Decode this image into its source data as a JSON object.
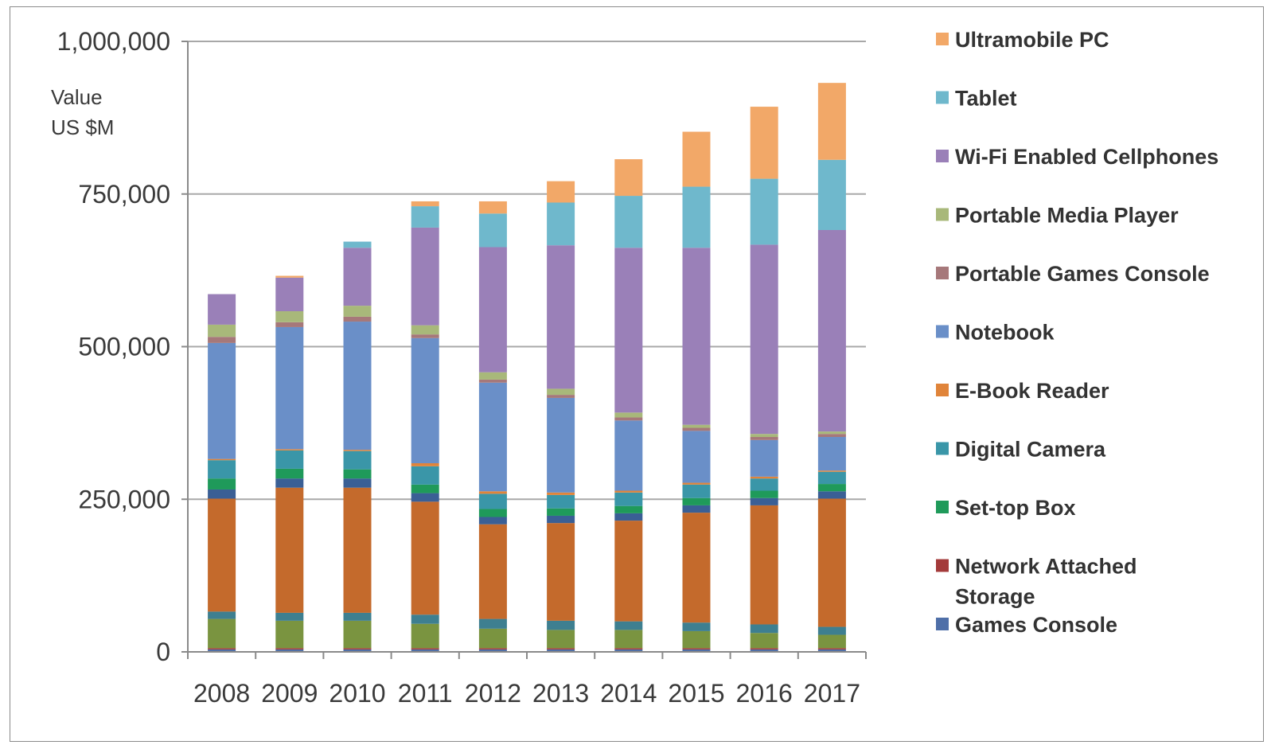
{
  "chart_data": {
    "type": "bar",
    "stacked": true,
    "unit_label": [
      "Value",
      "US $M"
    ],
    "categories": [
      "2008",
      "2009",
      "2010",
      "2011",
      "2012",
      "2013",
      "2014",
      "2015",
      "2016",
      "2017"
    ],
    "ylim": [
      0,
      1000000
    ],
    "yticks": [
      0,
      250000,
      500000,
      750000,
      1000000
    ],
    "ytick_labels": [
      "0",
      "250,000",
      "500,000",
      "750,000",
      "1,000,000"
    ],
    "grid": true,
    "legend_position": "right",
    "series": [
      {
        "name": "Games Console",
        "color": "#4f6fa8",
        "values": [
          4000,
          4000,
          4000,
          4000,
          4000,
          4000,
          4000,
          4000,
          4000,
          4000
        ]
      },
      {
        "name": "Network Attached Storage",
        "color": "#a33a3a",
        "values": [
          2000,
          2000,
          2000,
          2000,
          2000,
          2000,
          2000,
          2000,
          2000,
          2000
        ]
      },
      {
        "name": "",
        "color": "#7a9440",
        "values": [
          48000,
          45000,
          45000,
          40000,
          32000,
          30000,
          30000,
          28000,
          25000,
          22000
        ]
      },
      {
        "name": "",
        "color": "#3e7f90",
        "values": [
          12000,
          13000,
          13000,
          15000,
          16000,
          15000,
          14000,
          14000,
          14000,
          13000
        ]
      },
      {
        "name": "E-Book Reader",
        "color": "#c46a2c",
        "values": [
          185000,
          205000,
          205000,
          185000,
          155000,
          160000,
          165000,
          180000,
          195000,
          210000
        ]
      },
      {
        "name": "",
        "color": "#3a5f95",
        "values": [
          15000,
          15000,
          15000,
          14000,
          12000,
          12000,
          12000,
          12000,
          12000,
          12000
        ]
      },
      {
        "name": "Set-top Box",
        "color": "#1f9a5a",
        "values": [
          18000,
          16000,
          15000,
          14000,
          13000,
          12000,
          12000,
          12000,
          12000,
          12000
        ]
      },
      {
        "name": "Digital Camera",
        "color": "#3a96a8",
        "values": [
          30000,
          30000,
          30000,
          30000,
          25000,
          22000,
          22000,
          22000,
          20000,
          20000
        ]
      },
      {
        "name": "E-Book Reader",
        "color": "#e0843a",
        "values": [
          2000,
          2000,
          2000,
          5000,
          4000,
          4000,
          3000,
          3000,
          3000,
          2000
        ]
      },
      {
        "name": "Notebook",
        "color": "#6a8fc8",
        "values": [
          190000,
          200000,
          210000,
          205000,
          178000,
          155000,
          115000,
          85000,
          60000,
          55000
        ]
      },
      {
        "name": "Portable Games Console",
        "color": "#a6787a",
        "values": [
          10000,
          8000,
          8000,
          6000,
          5000,
          5000,
          5000,
          5000,
          5000,
          5000
        ]
      },
      {
        "name": "Portable Media Player",
        "color": "#a8b87a",
        "values": [
          20000,
          18000,
          18000,
          15000,
          12000,
          10000,
          8000,
          5000,
          5000,
          4000
        ]
      },
      {
        "name": "Wi-Fi Enabled Cellphones",
        "color": "#9a80b8",
        "values": [
          50000,
          55000,
          95000,
          160000,
          205000,
          235000,
          270000,
          290000,
          310000,
          330000
        ]
      },
      {
        "name": "Tablet",
        "color": "#6fb8cc",
        "values": [
          0,
          0,
          10000,
          35000,
          55000,
          70000,
          85000,
          100000,
          108000,
          115000
        ]
      },
      {
        "name": "Ultramobile PC",
        "color": "#f2a868",
        "values": [
          0,
          3000,
          0,
          8000,
          20000,
          35000,
          60000,
          90000,
          118000,
          126000
        ]
      }
    ],
    "legend": [
      {
        "name": "Ultramobile PC",
        "color": "#f2a868"
      },
      {
        "name": "Tablet",
        "color": "#6fb8cc"
      },
      {
        "name": "Wi-Fi Enabled Cellphones",
        "color": "#9a80b8"
      },
      {
        "name": "Portable Media Player",
        "color": "#a8b87a"
      },
      {
        "name": "Portable Games Console",
        "color": "#a6787a"
      },
      {
        "name": "Notebook",
        "color": "#6a8fc8"
      },
      {
        "name": "E-Book Reader",
        "color": "#e0843a"
      },
      {
        "name": "Digital Camera",
        "color": "#3a96a8"
      },
      {
        "name": "Set-top Box",
        "color": "#1f9a5a"
      },
      {
        "name": "Network Attached Storage",
        "lines": [
          "Network Attached",
          "Storage"
        ],
        "color": "#a33a3a"
      },
      {
        "name": "Games Console",
        "color": "#4f6fa8"
      }
    ]
  }
}
